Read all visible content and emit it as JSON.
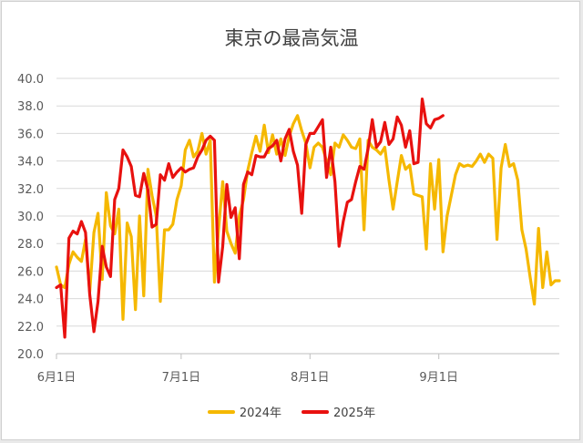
{
  "chart_data": {
    "type": "line",
    "title": "東京の最高気温",
    "xlabel": "",
    "ylabel": "",
    "ylim": [
      20.0,
      40.0
    ],
    "y_ticks": [
      "20.0",
      "22.0",
      "24.0",
      "26.0",
      "28.0",
      "30.0",
      "32.0",
      "34.0",
      "36.0",
      "38.0",
      "40.0"
    ],
    "x_ticks": [
      {
        "label": "6月1日",
        "day": 1
      },
      {
        "label": "7月1日",
        "day": 31
      },
      {
        "label": "8月1日",
        "day": 62
      },
      {
        "label": "9月1日",
        "day": 93
      }
    ],
    "xlim": [
      1,
      122
    ],
    "grid": true,
    "legend_position": "bottom",
    "series": [
      {
        "name": "2024年",
        "color": "#f5b800",
        "x": [
          1,
          2,
          3,
          4,
          5,
          6,
          7,
          8,
          9,
          10,
          11,
          12,
          13,
          14,
          15,
          16,
          17,
          18,
          19,
          20,
          21,
          22,
          23,
          24,
          25,
          26,
          27,
          28,
          29,
          30,
          31,
          32,
          33,
          34,
          35,
          36,
          37,
          38,
          39,
          40,
          41,
          42,
          43,
          44,
          45,
          46,
          47,
          48,
          49,
          50,
          51,
          52,
          53,
          54,
          55,
          56,
          57,
          58,
          59,
          60,
          61,
          62,
          63,
          64,
          65,
          66,
          67,
          68,
          69,
          70,
          71,
          72,
          73,
          74,
          75,
          76,
          77,
          78,
          79,
          80,
          81,
          82,
          83,
          84,
          85,
          86,
          87,
          88,
          89,
          90,
          91,
          92,
          93,
          94,
          95,
          96,
          97,
          98,
          99,
          100,
          101,
          102,
          103,
          104,
          105,
          106,
          107,
          108,
          109,
          110,
          111,
          112,
          113,
          114,
          115,
          116,
          117,
          118,
          119,
          120,
          121,
          122
        ],
        "values": [
          26.3,
          25.0,
          24.8,
          26.5,
          27.4,
          27.0,
          26.7,
          28.3,
          24.5,
          28.8,
          30.2,
          25.4,
          31.7,
          29.3,
          28.7,
          30.5,
          22.5,
          29.5,
          28.5,
          23.2,
          30.0,
          24.2,
          33.4,
          31.5,
          30.0,
          23.8,
          29.0,
          29.0,
          29.4,
          31.2,
          32.2,
          34.8,
          35.5,
          34.3,
          34.7,
          36.0,
          34.5,
          35.5,
          25.2,
          29.0,
          32.5,
          28.9,
          28.0,
          27.3,
          30.0,
          31.2,
          33.3,
          34.6,
          35.8,
          34.7,
          36.6,
          34.6,
          35.9,
          34.5,
          35.6,
          34.4,
          35.8,
          36.7,
          37.3,
          36.2,
          35.3,
          33.5,
          35.0,
          35.3,
          35.0,
          34.0,
          33.0,
          35.3,
          35.0,
          35.9,
          35.5,
          35.0,
          34.9,
          35.6,
          29.0,
          35.5,
          35.0,
          34.8,
          34.5,
          35.0,
          32.6,
          30.5,
          32.5,
          34.4,
          33.4,
          33.7,
          31.6,
          31.5,
          31.4,
          27.6,
          33.8,
          30.5,
          34.1,
          27.4,
          30.0,
          31.5,
          33.0,
          33.8,
          33.6,
          33.7,
          33.6,
          34.0,
          34.5,
          33.9,
          34.5,
          34.2,
          28.3,
          33.5,
          35.2,
          33.6,
          33.8,
          32.6,
          29.0,
          27.6,
          25.5,
          23.6,
          29.1,
          24.8,
          27.4,
          25.0,
          25.3,
          25.3
        ]
      },
      {
        "name": "2025年",
        "color": "#e8110f",
        "x": [
          1,
          2,
          3,
          4,
          5,
          6,
          7,
          8,
          9,
          10,
          11,
          12,
          13,
          14,
          15,
          16,
          17,
          18,
          19,
          20,
          21,
          22,
          23,
          24,
          25,
          26,
          27,
          28,
          29,
          30,
          31,
          32,
          33,
          34,
          35,
          36,
          37,
          38,
          39,
          40,
          41,
          42,
          43,
          44,
          45,
          46,
          47,
          48,
          49,
          50,
          51,
          52,
          53,
          54,
          55,
          56,
          57,
          58,
          59,
          60,
          61,
          62,
          63,
          64,
          65,
          66,
          67,
          68,
          69,
          70,
          71,
          72,
          73,
          74,
          75,
          76,
          77,
          78,
          79,
          80,
          81,
          82,
          83,
          84,
          85,
          86,
          87,
          88,
          89,
          90,
          91,
          92,
          93,
          94
        ],
        "values": [
          24.8,
          25.0,
          21.2,
          28.4,
          28.9,
          28.7,
          29.6,
          28.8,
          24.3,
          21.6,
          23.8,
          27.8,
          26.3,
          25.6,
          31.2,
          32.0,
          34.8,
          34.3,
          33.6,
          31.5,
          31.4,
          33.1,
          31.9,
          29.2,
          29.4,
          33.0,
          32.6,
          33.8,
          32.8,
          33.2,
          33.5,
          33.2,
          33.4,
          33.5,
          34.3,
          34.8,
          35.5,
          35.8,
          35.5,
          25.2,
          27.8,
          32.3,
          29.9,
          30.6,
          26.9,
          32.3,
          33.2,
          33.0,
          34.4,
          34.3,
          34.3,
          34.9,
          35.1,
          35.5,
          34.0,
          35.6,
          36.3,
          34.7,
          33.7,
          30.2,
          35.2,
          36.0,
          36.0,
          36.5,
          37.0,
          32.8,
          35.0,
          32.5,
          27.8,
          29.6,
          31.0,
          31.2,
          32.5,
          33.6,
          33.4,
          34.9,
          37.0,
          35.0,
          35.4,
          36.8,
          35.2,
          35.6,
          37.2,
          36.6,
          35.0,
          36.2,
          33.8,
          33.9,
          38.5,
          36.7,
          36.4,
          37.0,
          37.1,
          37.3
        ]
      }
    ]
  }
}
